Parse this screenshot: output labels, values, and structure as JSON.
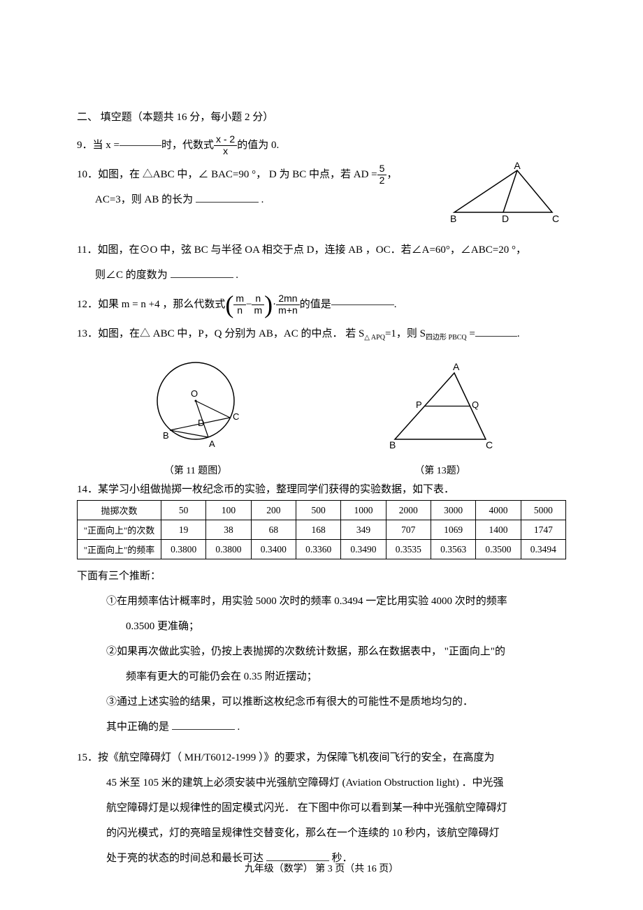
{
  "section2": {
    "heading": "二、  填空题（本题共  16 分，每小题  2 分）"
  },
  "q9": {
    "prefix": "9．当 x = ",
    "mid": " 时，代数式 ",
    "frac_num": "x - 2",
    "frac_den": "x",
    "suffix": " 的值为 0."
  },
  "q10": {
    "l1_a": "10．如图，在  △ABC 中，∠ BAC=90 °， D 为 BC 中点，若 AD = ",
    "frac_num": "5",
    "frac_den": "2",
    "comma": " ，",
    "l2": "AC=3，则 AB 的长为  ",
    "period": ".",
    "triangle": {
      "A": "A",
      "B": "B",
      "C": "C",
      "D": "D"
    }
  },
  "q11": {
    "l1": "11．如图，在⊙O 中，弦 BC 与半径 OA 相交于点 D，连接 AB ，OC．若∠A=60°，∠ABC=20 °，",
    "l2_a": "则∠C 的度数为  ",
    "l2_b": "."
  },
  "q12": {
    "prefix": "12．如果 m  = n +4 ，那么代数式  ",
    "f1n": "m",
    "f1d": "n",
    "minus": " − ",
    "f2n": "n",
    "f2d": "m",
    "dot": "·",
    "f3n": "2mn",
    "f3d": "m+n",
    "mid": " 的值是 ",
    "suffix": "."
  },
  "q13": {
    "text_a": "13．如图，在△ ABC 中，P，Q 分别为 AB，AC 的中点． 若 S",
    "sub1": "△ APQ",
    "eq1": "=1，则 S",
    "sub2": "四边形 PBCQ",
    "eq2": "  =",
    "suffix": "."
  },
  "figs": {
    "cap11": "（第 11 题图）",
    "cap13": "（第 13题）",
    "circle": {
      "O": "O",
      "A": "A",
      "B": "B",
      "C": "C",
      "D": "D"
    },
    "tri": {
      "A": "A",
      "B": "B",
      "C": "C",
      "P": "P",
      "Q": "Q"
    }
  },
  "q14": {
    "intro": "14．某学习小组做抛掷一枚纪念币的实验，整理同学们获得的实验数据，如下表．",
    "headers": [
      "抛掷次数",
      "50",
      "100",
      "200",
      "500",
      "1000",
      "2000",
      "3000",
      "4000",
      "5000"
    ],
    "row1": [
      "\"正面向上\"的次数",
      "19",
      "38",
      "68",
      "168",
      "349",
      "707",
      "1069",
      "1400",
      "1747"
    ],
    "row2": [
      "\"正面向上\"的频率",
      "0.3800",
      "0.3800",
      "0.3400",
      "0.3360",
      "0.3490",
      "0.3535",
      "0.3563",
      "0.3500",
      "0.3494"
    ],
    "after": "下面有三个推断：",
    "i1a": "①在用频率估计概率时，用实验    5000 次时的频率  0.3494 一定比用实验   4000 次时的频率",
    "i1b": "0.3500 更准确；",
    "i2a": "②如果再次做此实验，仍按上表抛掷的次数统计数据，那么在数据表中，     \"正面向上\"的",
    "i2b": "频率有更大的可能仍会在    0.35 附近摆动；",
    "i3": "③通过上述实验的结果，可以推断这枚纪念币有很大的可能性不是质地均匀的．",
    "ans_a": "其中正确的是  ",
    "ans_b": "."
  },
  "q15": {
    "l1": "15．按《航空障碍灯（  MH/T6012-1999 ）》的要求，为保障飞机夜间飞行的安全，在高度为",
    "l2": "45 米至 105 米的建筑上必须安装中光强航空障碍灯     (Aviation Obstruction light)  ．中光强",
    "l3": "航空障碍灯是以规律性的固定模式闪光．   在下图中你可以看到某一种中光强航空障碍灯",
    "l4": "的闪光模式，灯的亮暗呈规律性交替变化，那么在一个连续的      10 秒内，该航空障碍灯",
    "l5a": "处于亮的状态的时间总和最长可达   ",
    "l5b": "秒．"
  },
  "footer": "九年级（数学）   第 3 页（共 16 页）"
}
